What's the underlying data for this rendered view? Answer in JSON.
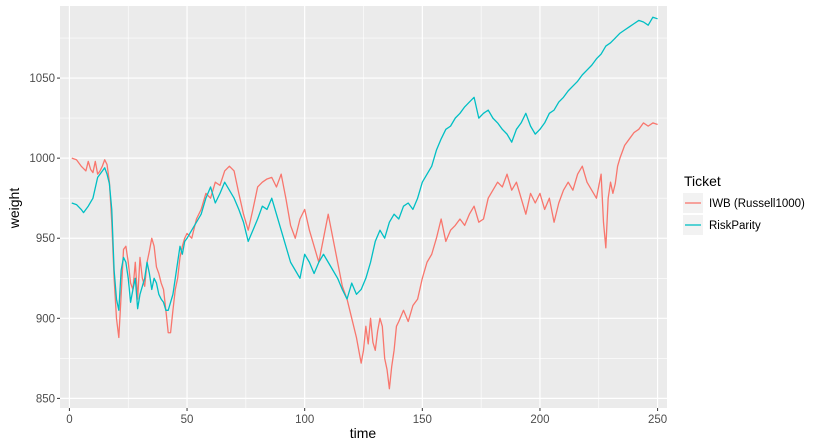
{
  "chart_data": {
    "type": "line",
    "xlabel": "time",
    "ylabel": "weight",
    "xlim": [
      -4,
      254
    ],
    "ylim": [
      844,
      1095
    ],
    "xticks": [
      0,
      50,
      100,
      150,
      200,
      250
    ],
    "yticks": [
      850,
      900,
      950,
      1000,
      1050
    ],
    "grid": true,
    "legend_title": "Ticket",
    "legend_position": "right",
    "series": [
      {
        "name": "IWB (Russell1000)",
        "color": "#F8766D",
        "points": [
          [
            1,
            1000
          ],
          [
            3,
            999
          ],
          [
            5,
            995
          ],
          [
            7,
            992
          ],
          [
            8,
            998
          ],
          [
            9,
            993
          ],
          [
            10,
            991
          ],
          [
            11,
            998
          ],
          [
            12,
            990
          ],
          [
            13,
            992
          ],
          [
            14,
            995
          ],
          [
            15,
            999
          ],
          [
            16,
            996
          ],
          [
            17,
            985
          ],
          [
            18,
            960
          ],
          [
            19,
            925
          ],
          [
            20,
            900
          ],
          [
            21,
            888
          ],
          [
            22,
            915
          ],
          [
            23,
            943
          ],
          [
            24,
            945
          ],
          [
            25,
            935
          ],
          [
            26,
            922
          ],
          [
            27,
            918
          ],
          [
            28,
            935
          ],
          [
            29,
            912
          ],
          [
            30,
            938
          ],
          [
            31,
            925
          ],
          [
            32,
            920
          ],
          [
            33,
            935
          ],
          [
            34,
            942
          ],
          [
            35,
            950
          ],
          [
            36,
            945
          ],
          [
            37,
            932
          ],
          [
            38,
            928
          ],
          [
            39,
            922
          ],
          [
            40,
            918
          ],
          [
            41,
            905
          ],
          [
            42,
            891
          ],
          [
            43,
            891
          ],
          [
            44,
            905
          ],
          [
            45,
            918
          ],
          [
            46,
            925
          ],
          [
            47,
            938
          ],
          [
            48,
            945
          ],
          [
            49,
            950
          ],
          [
            50,
            953
          ],
          [
            52,
            950
          ],
          [
            54,
            962
          ],
          [
            56,
            968
          ],
          [
            58,
            978
          ],
          [
            60,
            975
          ],
          [
            62,
            985
          ],
          [
            64,
            983
          ],
          [
            66,
            992
          ],
          [
            68,
            995
          ],
          [
            70,
            992
          ],
          [
            72,
            978
          ],
          [
            74,
            965
          ],
          [
            76,
            955
          ],
          [
            78,
            968
          ],
          [
            80,
            982
          ],
          [
            82,
            985
          ],
          [
            84,
            987
          ],
          [
            86,
            988
          ],
          [
            88,
            982
          ],
          [
            90,
            990
          ],
          [
            92,
            975
          ],
          [
            94,
            958
          ],
          [
            96,
            950
          ],
          [
            98,
            962
          ],
          [
            100,
            968
          ],
          [
            102,
            955
          ],
          [
            104,
            945
          ],
          [
            106,
            935
          ],
          [
            108,
            950
          ],
          [
            110,
            965
          ],
          [
            112,
            950
          ],
          [
            114,
            935
          ],
          [
            116,
            920
          ],
          [
            118,
            912
          ],
          [
            120,
            900
          ],
          [
            122,
            888
          ],
          [
            123,
            880
          ],
          [
            124,
            872
          ],
          [
            125,
            880
          ],
          [
            126,
            895
          ],
          [
            127,
            884
          ],
          [
            128,
            900
          ],
          [
            129,
            885
          ],
          [
            130,
            880
          ],
          [
            131,
            892
          ],
          [
            132,
            900
          ],
          [
            133,
            895
          ],
          [
            134,
            875
          ],
          [
            135,
            868
          ],
          [
            136,
            856
          ],
          [
            137,
            870
          ],
          [
            138,
            880
          ],
          [
            139,
            895
          ],
          [
            140,
            898
          ],
          [
            142,
            905
          ],
          [
            144,
            898
          ],
          [
            146,
            908
          ],
          [
            148,
            912
          ],
          [
            150,
            925
          ],
          [
            152,
            935
          ],
          [
            154,
            940
          ],
          [
            156,
            950
          ],
          [
            158,
            962
          ],
          [
            160,
            948
          ],
          [
            162,
            955
          ],
          [
            164,
            958
          ],
          [
            166,
            962
          ],
          [
            168,
            958
          ],
          [
            170,
            965
          ],
          [
            172,
            970
          ],
          [
            174,
            960
          ],
          [
            176,
            962
          ],
          [
            178,
            975
          ],
          [
            180,
            980
          ],
          [
            182,
            985
          ],
          [
            184,
            982
          ],
          [
            186,
            990
          ],
          [
            188,
            980
          ],
          [
            190,
            985
          ],
          [
            192,
            975
          ],
          [
            194,
            965
          ],
          [
            196,
            978
          ],
          [
            198,
            972
          ],
          [
            200,
            978
          ],
          [
            202,
            968
          ],
          [
            204,
            975
          ],
          [
            206,
            960
          ],
          [
            208,
            972
          ],
          [
            210,
            980
          ],
          [
            212,
            985
          ],
          [
            214,
            980
          ],
          [
            216,
            990
          ],
          [
            218,
            995
          ],
          [
            220,
            985
          ],
          [
            222,
            980
          ],
          [
            224,
            975
          ],
          [
            226,
            990
          ],
          [
            227,
            960
          ],
          [
            228,
            944
          ],
          [
            229,
            975
          ],
          [
            230,
            985
          ],
          [
            231,
            978
          ],
          [
            232,
            984
          ],
          [
            233,
            995
          ],
          [
            234,
            1000
          ],
          [
            236,
            1008
          ],
          [
            238,
            1012
          ],
          [
            240,
            1016
          ],
          [
            242,
            1018
          ],
          [
            244,
            1022
          ],
          [
            246,
            1020
          ],
          [
            248,
            1022
          ],
          [
            250,
            1021
          ]
        ]
      },
      {
        "name": "RiskParity",
        "color": "#00BFC4",
        "points": [
          [
            1,
            972
          ],
          [
            3,
            971
          ],
          [
            5,
            968
          ],
          [
            6,
            966
          ],
          [
            8,
            970
          ],
          [
            10,
            975
          ],
          [
            12,
            988
          ],
          [
            14,
            992
          ],
          [
            15,
            994
          ],
          [
            16,
            990
          ],
          [
            17,
            984
          ],
          [
            18,
            968
          ],
          [
            19,
            930
          ],
          [
            20,
            912
          ],
          [
            21,
            905
          ],
          [
            22,
            930
          ],
          [
            23,
            938
          ],
          [
            24,
            935
          ],
          [
            25,
            925
          ],
          [
            26,
            910
          ],
          [
            27,
            918
          ],
          [
            28,
            925
          ],
          [
            29,
            906
          ],
          [
            30,
            915
          ],
          [
            31,
            920
          ],
          [
            32,
            925
          ],
          [
            33,
            935
          ],
          [
            34,
            928
          ],
          [
            35,
            918
          ],
          [
            36,
            925
          ],
          [
            37,
            922
          ],
          [
            38,
            915
          ],
          [
            39,
            912
          ],
          [
            40,
            910
          ],
          [
            41,
            905
          ],
          [
            42,
            905
          ],
          [
            43,
            910
          ],
          [
            44,
            915
          ],
          [
            45,
            925
          ],
          [
            46,
            935
          ],
          [
            47,
            945
          ],
          [
            48,
            940
          ],
          [
            49,
            948
          ],
          [
            50,
            950
          ],
          [
            52,
            955
          ],
          [
            54,
            960
          ],
          [
            56,
            965
          ],
          [
            58,
            975
          ],
          [
            60,
            982
          ],
          [
            62,
            972
          ],
          [
            64,
            978
          ],
          [
            66,
            985
          ],
          [
            68,
            980
          ],
          [
            70,
            975
          ],
          [
            72,
            968
          ],
          [
            74,
            960
          ],
          [
            76,
            948
          ],
          [
            78,
            955
          ],
          [
            80,
            962
          ],
          [
            82,
            970
          ],
          [
            84,
            968
          ],
          [
            86,
            975
          ],
          [
            88,
            965
          ],
          [
            90,
            955
          ],
          [
            92,
            945
          ],
          [
            94,
            935
          ],
          [
            96,
            930
          ],
          [
            98,
            925
          ],
          [
            100,
            940
          ],
          [
            102,
            935
          ],
          [
            104,
            928
          ],
          [
            106,
            935
          ],
          [
            108,
            940
          ],
          [
            110,
            935
          ],
          [
            112,
            930
          ],
          [
            114,
            925
          ],
          [
            116,
            918
          ],
          [
            118,
            912
          ],
          [
            120,
            922
          ],
          [
            122,
            915
          ],
          [
            124,
            918
          ],
          [
            126,
            925
          ],
          [
            128,
            935
          ],
          [
            130,
            948
          ],
          [
            132,
            955
          ],
          [
            134,
            950
          ],
          [
            136,
            960
          ],
          [
            138,
            965
          ],
          [
            140,
            962
          ],
          [
            142,
            970
          ],
          [
            144,
            972
          ],
          [
            146,
            968
          ],
          [
            148,
            975
          ],
          [
            150,
            985
          ],
          [
            152,
            990
          ],
          [
            154,
            995
          ],
          [
            156,
            1005
          ],
          [
            158,
            1012
          ],
          [
            160,
            1018
          ],
          [
            162,
            1020
          ],
          [
            164,
            1025
          ],
          [
            166,
            1028
          ],
          [
            168,
            1032
          ],
          [
            170,
            1035
          ],
          [
            172,
            1038
          ],
          [
            174,
            1025
          ],
          [
            176,
            1028
          ],
          [
            178,
            1030
          ],
          [
            180,
            1025
          ],
          [
            182,
            1022
          ],
          [
            184,
            1018
          ],
          [
            186,
            1015
          ],
          [
            188,
            1010
          ],
          [
            190,
            1018
          ],
          [
            192,
            1022
          ],
          [
            194,
            1028
          ],
          [
            196,
            1020
          ],
          [
            198,
            1015
          ],
          [
            200,
            1018
          ],
          [
            202,
            1022
          ],
          [
            204,
            1028
          ],
          [
            206,
            1030
          ],
          [
            208,
            1035
          ],
          [
            210,
            1038
          ],
          [
            212,
            1042
          ],
          [
            214,
            1045
          ],
          [
            216,
            1048
          ],
          [
            218,
            1052
          ],
          [
            220,
            1055
          ],
          [
            222,
            1058
          ],
          [
            224,
            1062
          ],
          [
            226,
            1065
          ],
          [
            228,
            1070
          ],
          [
            230,
            1072
          ],
          [
            232,
            1075
          ],
          [
            234,
            1078
          ],
          [
            236,
            1080
          ],
          [
            238,
            1082
          ],
          [
            240,
            1084
          ],
          [
            242,
            1086
          ],
          [
            244,
            1085
          ],
          [
            246,
            1083
          ],
          [
            248,
            1088
          ],
          [
            250,
            1087
          ]
        ]
      }
    ]
  }
}
